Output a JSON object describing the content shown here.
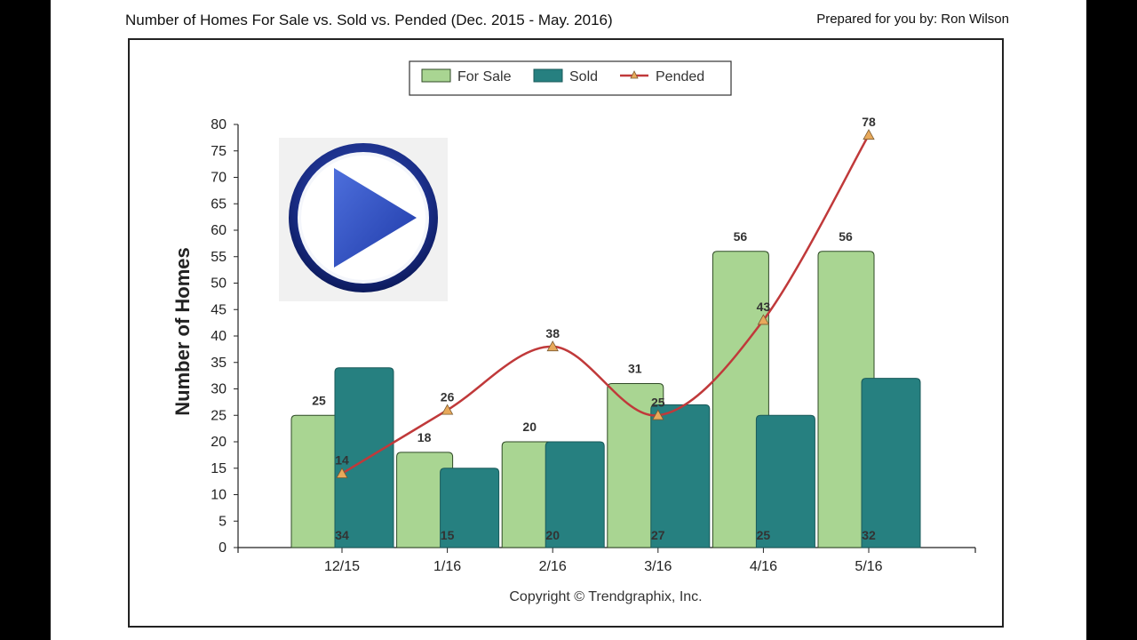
{
  "header": {
    "title": "Number of Homes For Sale vs. Sold vs. Pended (Dec. 2015 - May. 2016)",
    "prepared_by": "Prepared for you by: Ron Wilson"
  },
  "play_overlay": {
    "icon": "play-button-icon"
  },
  "colors": {
    "for_sale": "#a9d592",
    "sold": "#268080",
    "pended": "#c0393a",
    "marker": "#e8a95b"
  },
  "chart_data": {
    "type": "bar",
    "title": "Number of Homes For Sale vs. Sold vs. Pended (Dec. 2015 - May. 2016)",
    "categories": [
      "12/15",
      "1/16",
      "2/16",
      "3/16",
      "4/16",
      "5/16"
    ],
    "series": [
      {
        "name": "For Sale",
        "type": "bar",
        "values": [
          25,
          18,
          20,
          31,
          56,
          56
        ]
      },
      {
        "name": "Sold",
        "type": "bar",
        "values": [
          34,
          15,
          20,
          27,
          25,
          32
        ]
      },
      {
        "name": "Pended",
        "type": "line",
        "values": [
          14,
          26,
          38,
          25,
          43,
          78
        ]
      }
    ],
    "xlabel": "",
    "ylabel": "Number of Homes",
    "ylim": [
      0,
      80
    ],
    "yticks": [
      0,
      5,
      10,
      15,
      20,
      25,
      30,
      35,
      40,
      45,
      50,
      55,
      60,
      65,
      70,
      75,
      80
    ],
    "legend": {
      "position": "top-center",
      "entries": [
        "For Sale",
        "Sold",
        "Pended"
      ]
    },
    "grid": false,
    "footer": "Copyright © Trendgraphix, Inc."
  }
}
